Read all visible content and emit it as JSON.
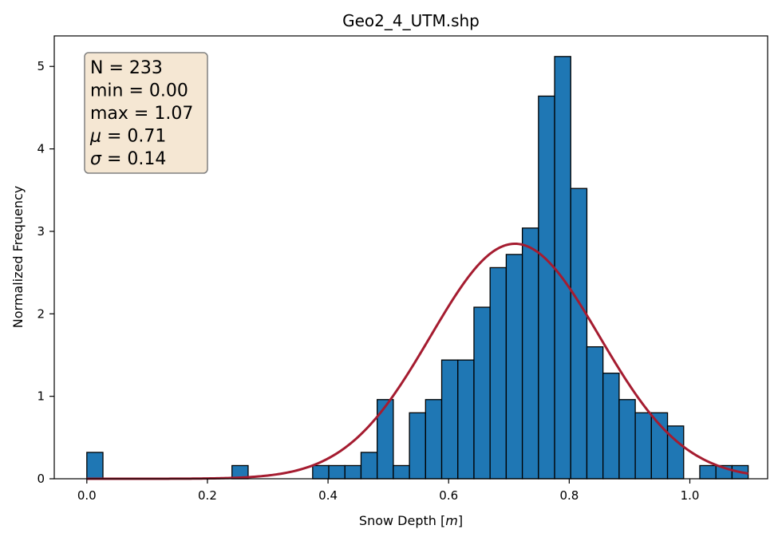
{
  "chart_data": {
    "type": "bar",
    "title": "Geo2_4_UTM.shp",
    "xlabel": "Snow Depth [m]",
    "ylabel": "Normalized Frequency",
    "xlim": [
      -0.054,
      1.129
    ],
    "ylim": [
      0,
      5.37
    ],
    "xticks": [
      0.0,
      0.2,
      0.4,
      0.6,
      0.8,
      1.0
    ],
    "xtick_labels": [
      "0.0",
      "0.2",
      "0.4",
      "0.6",
      "0.8",
      "1.0"
    ],
    "yticks": [
      0,
      1,
      2,
      3,
      4,
      5
    ],
    "ytick_labels": [
      "0",
      "1",
      "2",
      "3",
      "4",
      "5"
    ],
    "grid": false,
    "bin_start": 0.0,
    "bin_width": 0.02675,
    "values": [
      0.32,
      0,
      0,
      0,
      0,
      0,
      0,
      0,
      0,
      0.16,
      0,
      0,
      0,
      0,
      0.16,
      0.16,
      0.16,
      0.32,
      0.96,
      0.16,
      0.8,
      0.96,
      1.44,
      1.44,
      2.08,
      2.56,
      2.72,
      3.04,
      4.64,
      5.12,
      3.52,
      1.6,
      1.28,
      0.96,
      0.8,
      0.8,
      0.64,
      0,
      0.16,
      0.16,
      0.16
    ],
    "bar_color": "#1f77b4",
    "bar_edge_color": "#000000",
    "fit_curve": {
      "type": "normal",
      "mu": 0.71,
      "sigma": 0.14,
      "color": "#a51c30"
    },
    "annotation": {
      "placement": "top-left",
      "background": "#f5e7d3",
      "lines": [
        {
          "prefix": "N = 233",
          "symbol": "",
          "suffix": ""
        },
        {
          "prefix": "min = 0.00",
          "symbol": "",
          "suffix": ""
        },
        {
          "prefix": "max = 1.07",
          "symbol": "",
          "suffix": ""
        },
        {
          "prefix": "",
          "symbol": "μ",
          "suffix": " = 0.71"
        },
        {
          "prefix": "",
          "symbol": "σ",
          "suffix": " = 0.14"
        }
      ]
    }
  }
}
